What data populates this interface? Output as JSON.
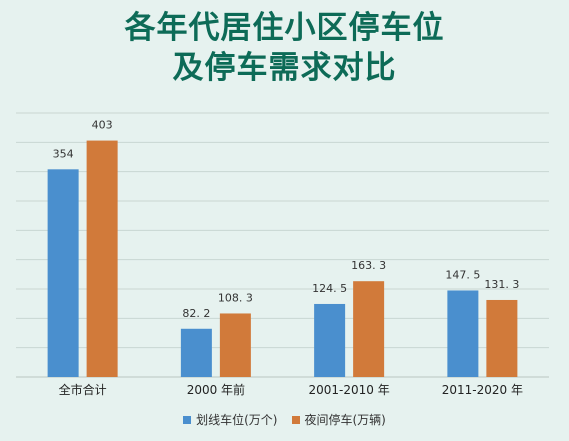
{
  "chart_data": {
    "type": "bar",
    "title": "各年代居住小区停车位",
    "subtitle": "及停车需求对比",
    "categories": [
      "全市合计",
      "2000 年前",
      "2001-2010 年",
      "2011-2020 年"
    ],
    "series": [
      {
        "name": "划线车位(万个)",
        "color": "#4a8fce",
        "values": [
          354,
          82.2,
          124.5,
          147.5
        ],
        "labels": [
          "354",
          "82. 2",
          "124. 5",
          "147. 5"
        ]
      },
      {
        "name": "夜间停车(万辆)",
        "color": "#d17a3a",
        "values": [
          403,
          108.3,
          163.3,
          131.3
        ],
        "labels": [
          "403",
          "108. 3",
          "163. 3",
          "131. 3"
        ]
      }
    ],
    "ylim": [
      0,
      450
    ],
    "grid": true,
    "legend": "bottom"
  }
}
